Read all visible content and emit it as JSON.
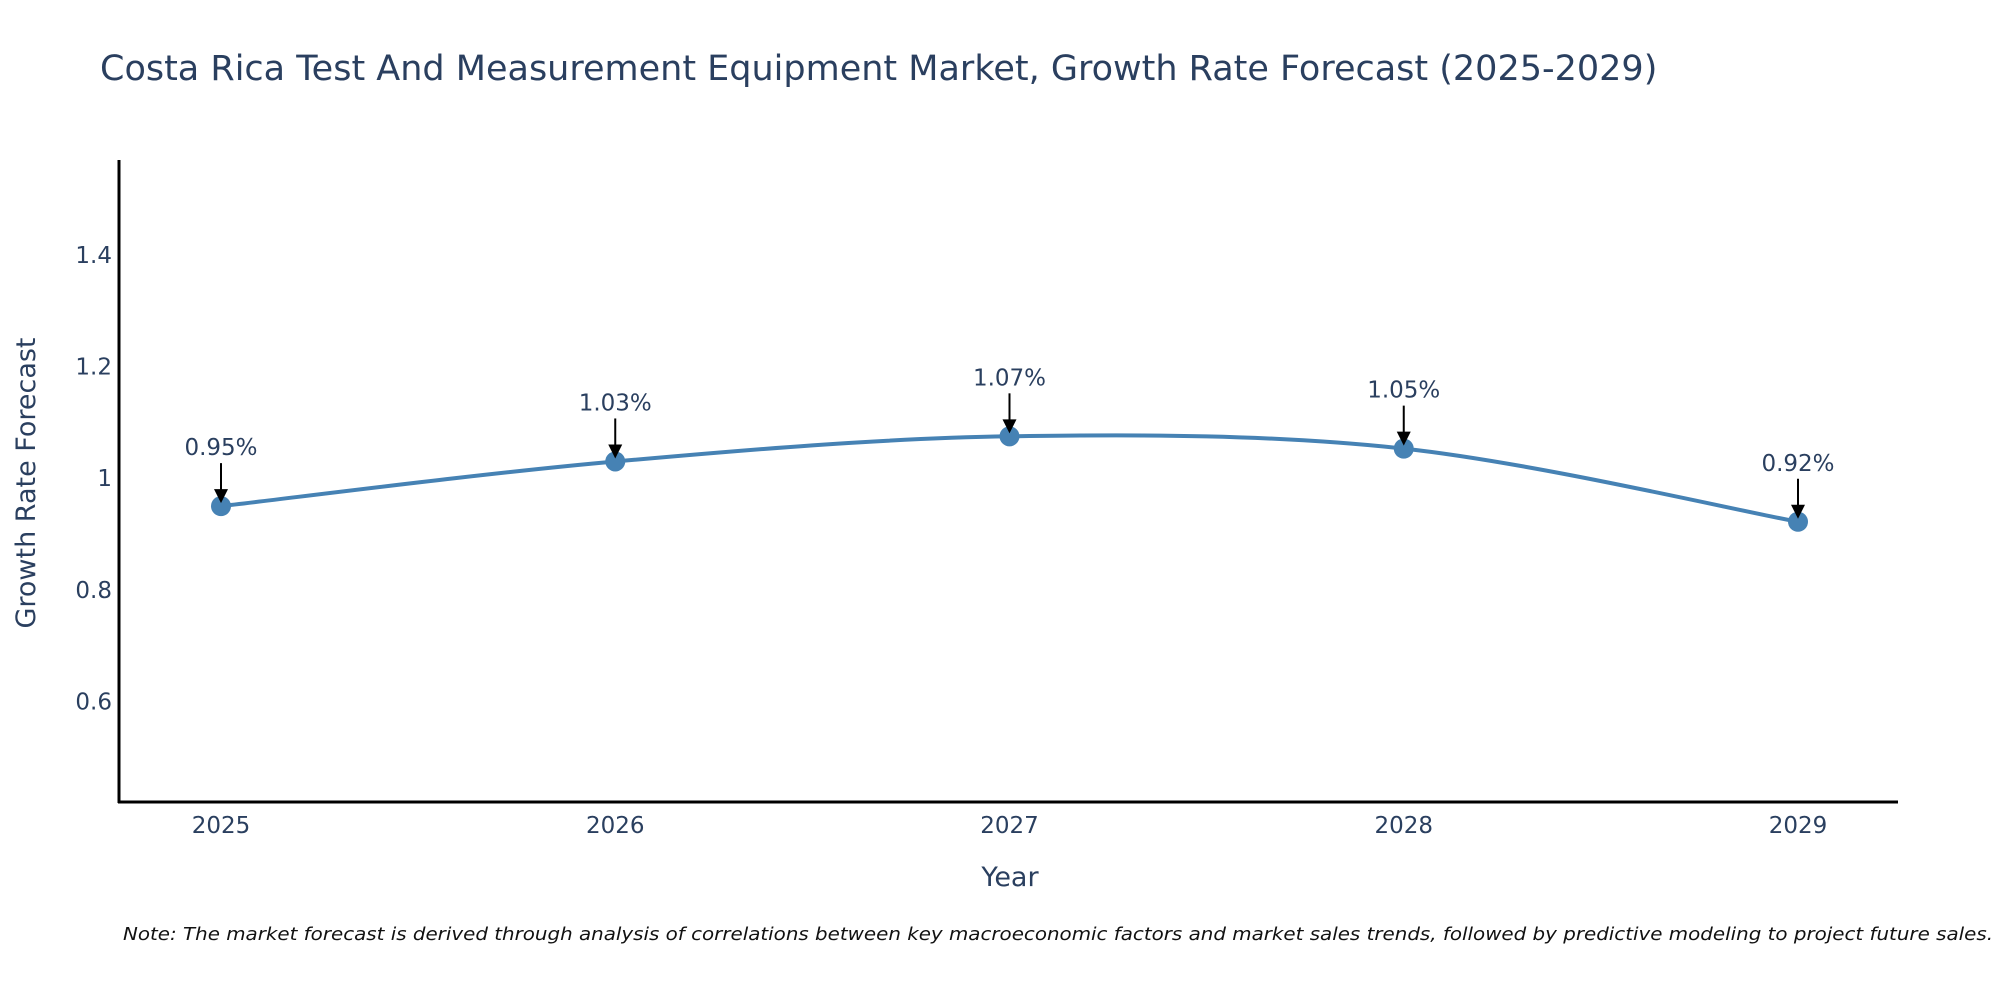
{
  "chart_data": {
    "type": "line",
    "title": "Costa Rica Test And Measurement Equipment Market, Growth Rate Forecast (2025-2029)",
    "xlabel": "Year",
    "ylabel": "Growth Rate Forecast",
    "categories": [
      "2025",
      "2026",
      "2027",
      "2028",
      "2029"
    ],
    "series": [
      {
        "name": "Growth Rate Forecast",
        "values": [
          0.95,
          1.03,
          1.075,
          1.053,
          0.922
        ],
        "labels": [
          "0.95%",
          "1.03%",
          "1.07%",
          "1.05%",
          "0.92%"
        ],
        "color": "#4682b4"
      }
    ],
    "ylim": [
      0.42,
      1.57
    ],
    "yticks": [
      0.6,
      0.8,
      1,
      1.2,
      1.4
    ],
    "ytick_labels": [
      "0.6",
      "0.8",
      "1",
      "1.2",
      "1.4"
    ],
    "grid": false,
    "line_shape": "spline"
  },
  "note": "Note: The market forecast is derived through analysis of correlations between key macroeconomic factors and market sales trends, followed by predictive modeling to project future sales."
}
